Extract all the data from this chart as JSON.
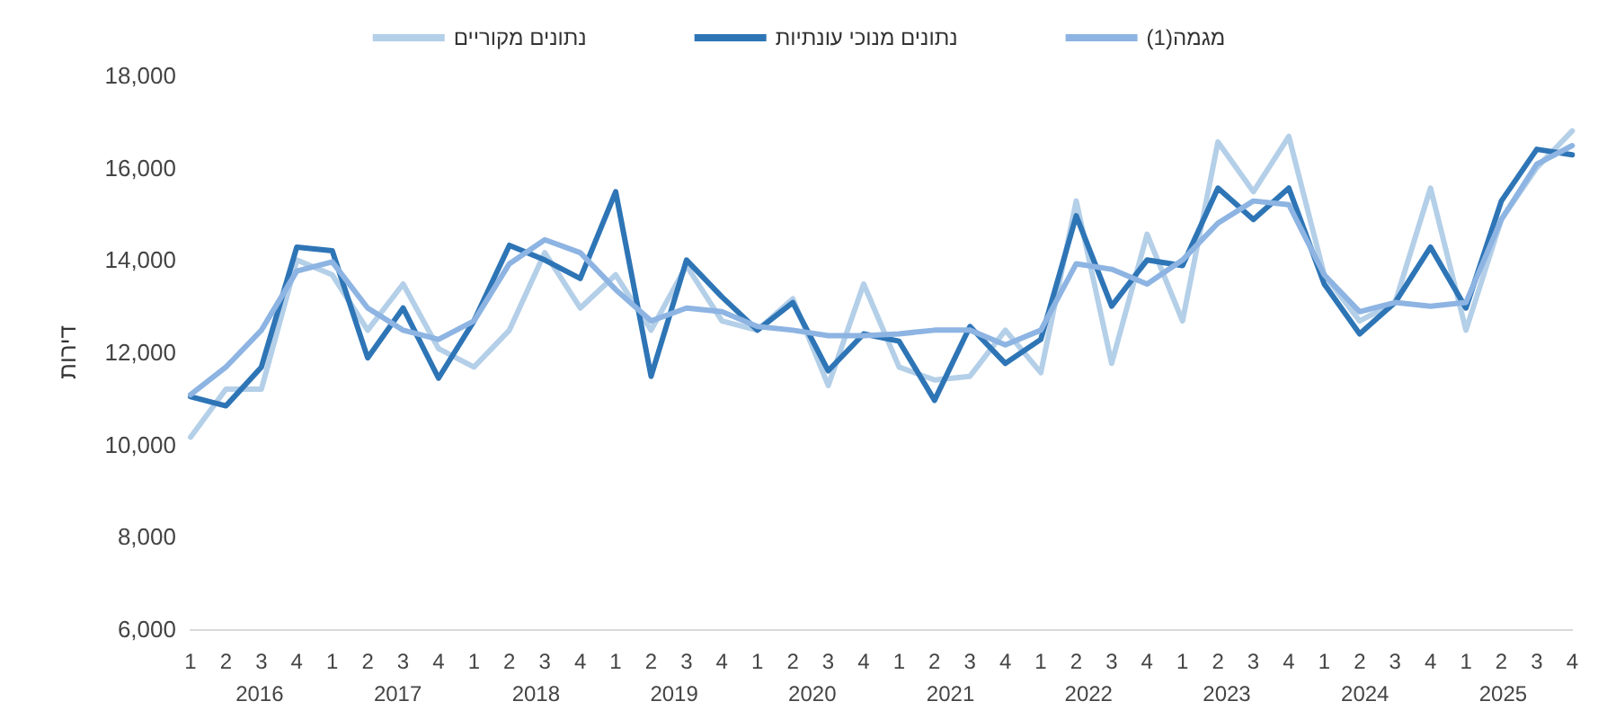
{
  "chart_data": {
    "type": "line",
    "ylabel": "דירות",
    "categories": [
      "1",
      "2",
      "3",
      "4",
      "1",
      "2",
      "3",
      "4",
      "1",
      "2",
      "3",
      "4",
      "1",
      "2",
      "3",
      "4",
      "1",
      "2",
      "3",
      "4",
      "1",
      "2",
      "3",
      "4",
      "1",
      "2",
      "3",
      "4",
      "1",
      "2",
      "3",
      "4",
      "1",
      "2",
      "3",
      "4",
      "1",
      "2",
      "3",
      "4"
    ],
    "annotations": [
      "2016",
      "2017",
      "2018",
      "2019",
      "2020",
      "2021",
      "2022",
      "2023",
      "2024",
      "2025"
    ],
    "series": [
      {
        "name": "נתונים מקוריים",
        "color": "#b4cfe8",
        "values": [
          10160,
          11200,
          11200,
          14000,
          13680,
          12480,
          13480,
          12080,
          11680,
          12480,
          14160,
          12960,
          13680,
          12480,
          13880,
          12680,
          12480,
          13160,
          11280,
          13480,
          11680,
          11400,
          11480,
          12480,
          11560,
          15280,
          11760,
          14560,
          12680,
          16560,
          15480,
          16680,
          13680,
          12680,
          13080,
          15560,
          12480,
          14880,
          16000,
          16800
        ]
      },
      {
        "name": "נתונים מנוכי עונתיות",
        "color": "#2e75b6",
        "values": [
          11040,
          10840,
          11680,
          14280,
          14200,
          11880,
          12960,
          11440,
          12680,
          14320,
          14000,
          13600,
          15480,
          11480,
          14000,
          13200,
          12480,
          13080,
          11600,
          12400,
          12240,
          10960,
          12560,
          11760,
          12280,
          14960,
          13000,
          14000,
          13880,
          15560,
          14880,
          15560,
          13480,
          12400,
          13080,
          14280,
          12960,
          15280,
          16400,
          16280
        ]
      },
      {
        "name": "מגמה(1)",
        "color": "#8db4e2",
        "values": [
          11080,
          11680,
          12480,
          13760,
          13960,
          12960,
          12480,
          12280,
          12680,
          13920,
          14440,
          14160,
          13360,
          12680,
          12960,
          12880,
          12560,
          12480,
          12360,
          12360,
          12400,
          12480,
          12480,
          12160,
          12480,
          13920,
          13800,
          13480,
          14000,
          14800,
          15280,
          15200,
          13680,
          12880,
          13080,
          13000,
          13080,
          14880,
          16080,
          16480
        ]
      }
    ],
    "ylim": [
      6000,
      18000
    ],
    "yticks": [
      {
        "value": 6000,
        "label": "6,000"
      },
      {
        "value": 8000,
        "label": "8,000"
      },
      {
        "value": 10000,
        "label": "10,000"
      },
      {
        "value": 12000,
        "label": "12,000"
      },
      {
        "value": 14000,
        "label": "14,000"
      },
      {
        "value": 16000,
        "label": "16,000"
      },
      {
        "value": 18000,
        "label": "18,000"
      }
    ],
    "grid": false,
    "legend": "top",
    "marker": "none",
    "line_style": "solid"
  }
}
